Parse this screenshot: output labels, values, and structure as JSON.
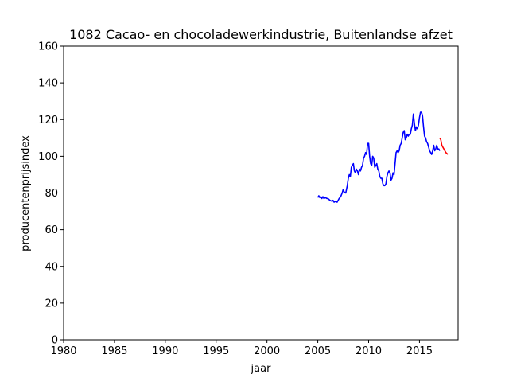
{
  "chart_data": {
    "type": "line",
    "title": "1082 Cacao- en chocoladewerkindustrie, Buitenlandse afzet",
    "xlabel": "jaar",
    "ylabel": "producentenprijsindex",
    "xlim": [
      1980,
      2018.8
    ],
    "ylim": [
      0,
      160
    ],
    "xticks": [
      1980,
      1985,
      1990,
      1995,
      2000,
      2005,
      2010,
      2015
    ],
    "yticks": [
      0,
      20,
      40,
      60,
      80,
      100,
      120,
      140,
      160
    ],
    "grid": false,
    "series": [
      {
        "color": "#0000ff",
        "x": [
          2005.0,
          2005.1,
          2005.2,
          2005.3,
          2005.4,
          2005.5,
          2005.6,
          2005.75,
          2005.9,
          2006.0,
          2006.2,
          2006.4,
          2006.5,
          2006.6,
          2006.75,
          2006.9,
          2007.0,
          2007.1,
          2007.25,
          2007.4,
          2007.5,
          2007.6,
          2007.75,
          2007.9,
          2008.0,
          2008.1,
          2008.2,
          2008.3,
          2008.4,
          2008.5,
          2008.6,
          2008.7,
          2008.8,
          2008.9,
          2009.0,
          2009.1,
          2009.2,
          2009.3,
          2009.4,
          2009.5,
          2009.6,
          2009.7,
          2009.8,
          2009.9,
          2010.0,
          2010.1,
          2010.2,
          2010.3,
          2010.4,
          2010.5,
          2010.6,
          2010.7,
          2010.8,
          2010.9,
          2011.0,
          2011.1,
          2011.2,
          2011.3,
          2011.4,
          2011.5,
          2011.6,
          2011.7,
          2011.8,
          2011.9,
          2012.0,
          2012.1,
          2012.2,
          2012.3,
          2012.4,
          2012.5,
          2012.6,
          2012.7,
          2012.8,
          2012.9,
          2013.0,
          2013.1,
          2013.2,
          2013.3,
          2013.4,
          2013.5,
          2013.6,
          2013.7,
          2013.8,
          2013.9,
          2014.0,
          2014.1,
          2014.2,
          2014.3,
          2014.4,
          2014.5,
          2014.6,
          2014.7,
          2014.8,
          2014.9,
          2015.0,
          2015.1,
          2015.2,
          2015.3,
          2015.4,
          2015.5,
          2015.6,
          2015.7,
          2015.8,
          2015.9,
          2016.0,
          2016.1,
          2016.2,
          2016.3,
          2016.4,
          2016.5,
          2016.6,
          2016.7,
          2016.8,
          2016.9,
          2017.0
        ],
        "y": [
          77.5,
          78.5,
          77.5,
          78.0,
          77.0,
          78.0,
          77.0,
          77.5,
          77.0,
          77.0,
          76.0,
          75.5,
          76.0,
          75.0,
          75.5,
          75.0,
          76.0,
          77.0,
          78.0,
          80.0,
          82.0,
          80.5,
          80.0,
          84.0,
          88.0,
          90.0,
          89.0,
          94.0,
          95.0,
          96.0,
          92.0,
          91.0,
          93.0,
          92.0,
          90.0,
          93.0,
          92.0,
          94.0,
          95.0,
          99.0,
          100.0,
          102.0,
          101.0,
          107.0,
          107.0,
          100.0,
          96.0,
          95.0,
          100.0,
          99.0,
          94.0,
          95.0,
          96.0,
          93.0,
          92.0,
          89.0,
          88.0,
          88.0,
          85.0,
          84.0,
          84.0,
          85.0,
          89.0,
          91.0,
          92.0,
          91.0,
          87.0,
          88.0,
          91.0,
          90.0,
          96.0,
          102.0,
          103.0,
          102.0,
          103.0,
          106.0,
          107.0,
          110.0,
          113.0,
          114.0,
          109.0,
          110.0,
          112.0,
          111.0,
          112.0,
          112.0,
          115.0,
          117.0,
          123.0,
          118.0,
          114.0,
          116.0,
          115.0,
          117.0,
          121.0,
          124.0,
          124.0,
          122.0,
          116.0,
          111.0,
          110.0,
          108.0,
          107.0,
          105.0,
          103.0,
          102.0,
          101.0,
          103.0,
          106.0,
          103.0,
          104.0,
          106.0,
          104.0,
          104.0,
          103.0
        ]
      },
      {
        "color": "#ff0000",
        "x": [
          2017.0,
          2017.1,
          2017.2,
          2017.3,
          2017.4,
          2017.5,
          2017.6,
          2017.7,
          2017.8
        ],
        "y": [
          110.0,
          109.0,
          106.0,
          105.0,
          104.0,
          103.0,
          102.0,
          101.5,
          101.0
        ]
      }
    ]
  }
}
